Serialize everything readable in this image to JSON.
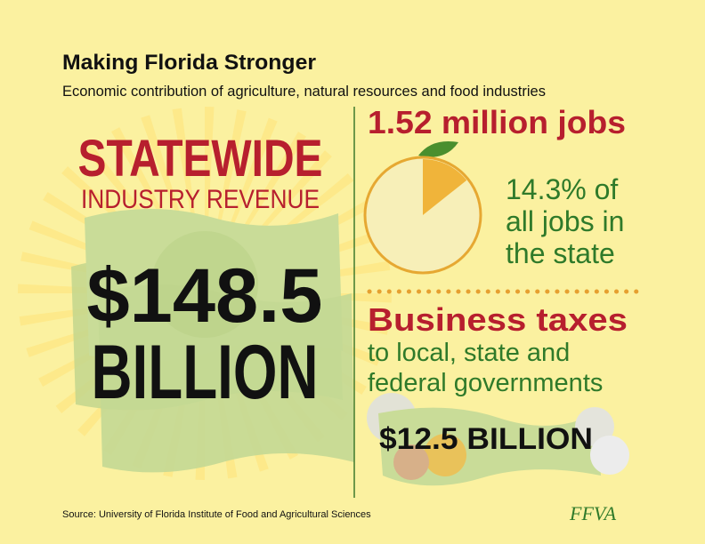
{
  "header": {
    "title": "Making Florida Stronger",
    "subtitle": "Economic contribution of agriculture, natural resources and food industries"
  },
  "revenue": {
    "heading": "STATEWIDE",
    "subheading": "INDUSTRY REVENUE",
    "amount": "$148.5",
    "unit": "BILLION"
  },
  "jobs": {
    "heading": "1.52 million jobs",
    "share_lines": [
      "14.3% of",
      "all jobs in",
      "the state"
    ],
    "share_value": 14.3
  },
  "taxes": {
    "heading": "Business taxes",
    "lines": [
      "to local, state and",
      "federal governments"
    ],
    "amount": "$12.5 BILLION"
  },
  "footer": {
    "source": "Source: University of Florida Institute of Food and Agricultural Sciences",
    "logo": "FFVA"
  }
}
